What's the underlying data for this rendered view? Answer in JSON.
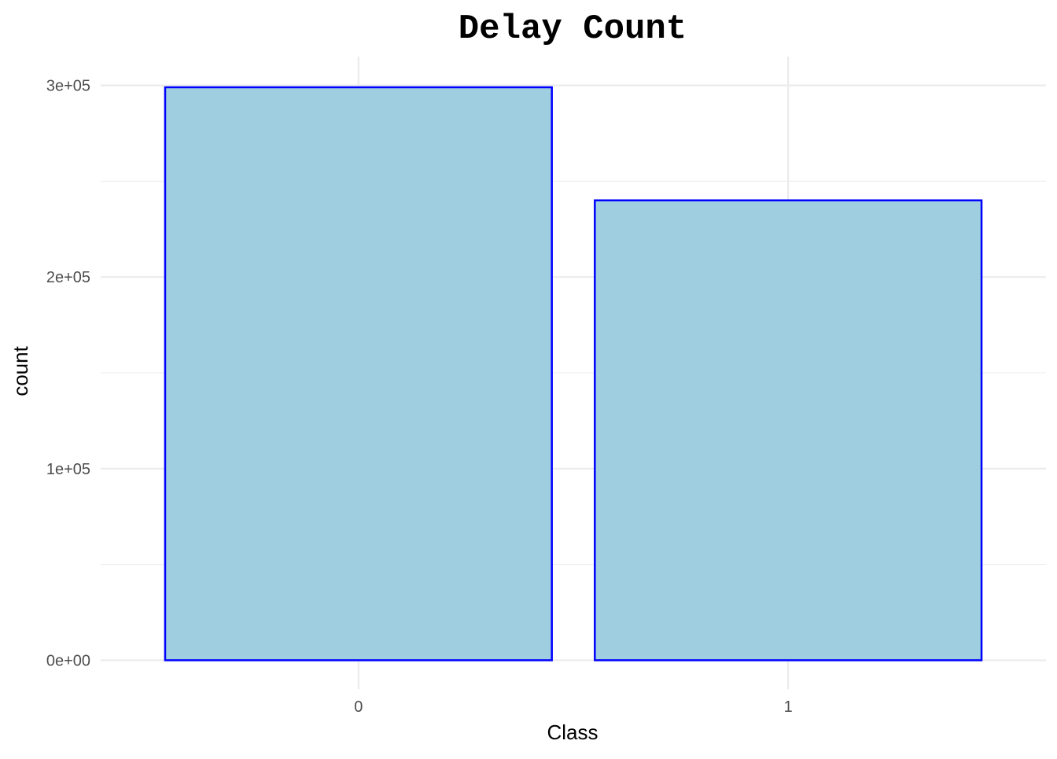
{
  "chart_data": {
    "type": "bar",
    "title": "Delay Count",
    "xlabel": "Class",
    "ylabel": "count",
    "categories": [
      "0",
      "1"
    ],
    "values": [
      299000,
      240000
    ],
    "ylim": [
      -15000,
      315000
    ],
    "yticks": [
      {
        "value": 0,
        "label": "0e+00"
      },
      {
        "value": 100000,
        "label": "1e+05"
      },
      {
        "value": 200000,
        "label": "2e+05"
      },
      {
        "value": 300000,
        "label": "3e+05"
      }
    ],
    "yminor": [
      50000,
      150000,
      250000
    ],
    "grid": true,
    "legend": "none",
    "colors": {
      "bar_fill": "#9ecee0",
      "bar_stroke": "#0000ff",
      "grid": "#ebebeb",
      "background": "#ffffff"
    }
  }
}
